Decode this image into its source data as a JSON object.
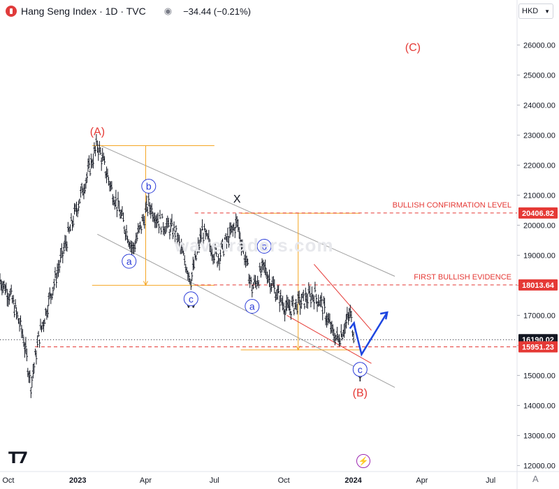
{
  "header": {
    "title": "Hang Seng Index · 1D · TVC",
    "change": "−34.44 (−0.21%)",
    "currency": "HKD"
  },
  "watermark": "wavetraders.com",
  "chart_data": {
    "type": "line",
    "title": "Hang Seng Index · 1D · TVC",
    "ylim": [
      11800,
      26800
    ],
    "y_ticks": [
      {
        "value": 12000,
        "label": "12000.00"
      },
      {
        "value": 13000,
        "label": "13000.00"
      },
      {
        "value": 14000,
        "label": "14000.00"
      },
      {
        "value": 15000,
        "label": "15000.00"
      },
      {
        "value": 16000,
        "label": "16000.00"
      },
      {
        "value": 17000,
        "label": "17000.00"
      },
      {
        "value": 18000,
        "label": "18000.00"
      },
      {
        "value": 19000,
        "label": "19000.00"
      },
      {
        "value": 20000,
        "label": "20000.00"
      },
      {
        "value": 21000,
        "label": "21000.00"
      },
      {
        "value": 22000,
        "label": "22000.00"
      },
      {
        "value": 23000,
        "label": "23000.00"
      },
      {
        "value": 24000,
        "label": "24000.00"
      },
      {
        "value": 25000,
        "label": "25000.00"
      },
      {
        "value": 26000,
        "label": "26000.00"
      }
    ],
    "x_range": [
      "2022-09-20",
      "2024-08-05"
    ],
    "x_ticks": [
      {
        "date": "2022-10-01",
        "label": "Oct"
      },
      {
        "date": "2023-01-01",
        "label": "2023"
      },
      {
        "date": "2023-04-01",
        "label": "Apr"
      },
      {
        "date": "2023-07-01",
        "label": "Jul"
      },
      {
        "date": "2023-10-01",
        "label": "Oct"
      },
      {
        "date": "2024-01-01",
        "label": "2024"
      },
      {
        "date": "2024-04-01",
        "label": "Apr"
      },
      {
        "date": "2024-07-01",
        "label": "Jul"
      }
    ],
    "series": [
      {
        "color": "#131722",
        "points": [
          {
            "date": "2022-09-20",
            "value": 18200
          },
          {
            "date": "2022-10-05",
            "value": 17600
          },
          {
            "date": "2022-10-20",
            "value": 16400
          },
          {
            "date": "2022-10-31",
            "value": 14700
          },
          {
            "date": "2022-11-10",
            "value": 16200
          },
          {
            "date": "2022-11-25",
            "value": 17600
          },
          {
            "date": "2022-12-15",
            "value": 19300
          },
          {
            "date": "2023-01-05",
            "value": 21000
          },
          {
            "date": "2023-01-27",
            "value": 22700
          },
          {
            "date": "2023-02-15",
            "value": 21200
          },
          {
            "date": "2023-03-15",
            "value": 19200
          },
          {
            "date": "2023-04-05",
            "value": 20700
          },
          {
            "date": "2023-04-20",
            "value": 20100
          },
          {
            "date": "2023-05-10",
            "value": 19800
          },
          {
            "date": "2023-05-31",
            "value": 18200
          },
          {
            "date": "2023-06-15",
            "value": 19800
          },
          {
            "date": "2023-07-05",
            "value": 18900
          },
          {
            "date": "2023-07-31",
            "value": 20100
          },
          {
            "date": "2023-08-20",
            "value": 17900
          },
          {
            "date": "2023-09-05",
            "value": 18600
          },
          {
            "date": "2023-09-20",
            "value": 17800
          },
          {
            "date": "2023-10-05",
            "value": 17200
          },
          {
            "date": "2023-10-20",
            "value": 17400
          },
          {
            "date": "2023-11-10",
            "value": 17700
          },
          {
            "date": "2023-11-20",
            "value": 17400
          },
          {
            "date": "2023-12-05",
            "value": 16400
          },
          {
            "date": "2023-12-12",
            "value": 16200
          },
          {
            "date": "2023-12-20",
            "value": 16600
          },
          {
            "date": "2023-12-28",
            "value": 17050
          },
          {
            "date": "2024-01-03",
            "value": 16190
          }
        ]
      }
    ],
    "levels": [
      {
        "value": 20406.82,
        "label": "20406.82",
        "name": "BULLISH CONFIRMATION LEVEL",
        "color": "#e53935"
      },
      {
        "value": 18013.64,
        "label": "18013.64",
        "name": "FIRST BULLISH EVIDENCE",
        "color": "#e53935"
      },
      {
        "value": 16190.02,
        "label": "16190.02",
        "color": "#131722"
      },
      {
        "value": 15951.23,
        "label": "15951.23",
        "color": "#e53935"
      }
    ],
    "wave_labels": [
      {
        "text": "(A)",
        "date": "2023-01-27",
        "value": 23000,
        "color": "#e53935"
      },
      {
        "text": "(B)",
        "date": "2024-01-10",
        "value": 14300,
        "color": "#e53935"
      },
      {
        "text": "(C)",
        "date": "2024-03-20",
        "value": 25800,
        "color": "#e53935"
      },
      {
        "text": "X",
        "date": "2023-07-31",
        "value": 20750,
        "color": "#131722"
      },
      {
        "text": "W",
        "date": "2023-05-31",
        "value": 17250,
        "color": "#131722"
      },
      {
        "text": "Y",
        "date": "2024-01-10",
        "value": 14800,
        "color": "#131722"
      }
    ],
    "circled_labels": [
      {
        "text": "b",
        "date": "2023-04-05",
        "value": 21300
      },
      {
        "text": "a",
        "date": "2023-03-10",
        "value": 18800
      },
      {
        "text": "c",
        "date": "2023-05-31",
        "value": 17550
      },
      {
        "text": "b",
        "date": "2023-09-05",
        "value": 19300
      },
      {
        "text": "a",
        "date": "2023-08-20",
        "value": 17300
      },
      {
        "text": "c",
        "date": "2024-01-10",
        "value": 15200
      }
    ],
    "colors": {
      "channel": "#9e9e9e",
      "orange": "#f5a623",
      "red_wedge": "#e53935",
      "projection": "#1e46e0",
      "circle": "#2a3bd8"
    }
  }
}
